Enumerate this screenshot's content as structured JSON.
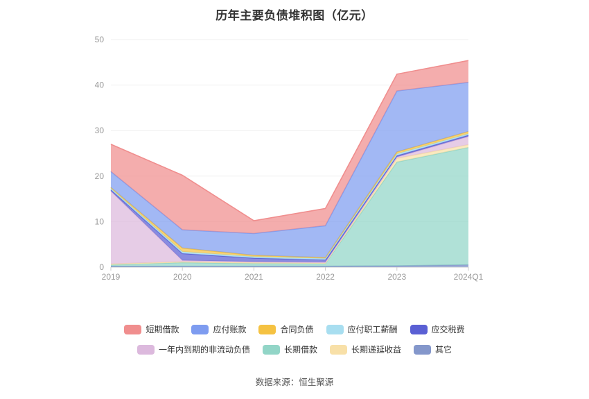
{
  "title": "历年主要负债堆积图（亿元）",
  "footer": "数据来源：恒生聚源",
  "chart_data": {
    "type": "area",
    "stacked": true,
    "title": "历年主要负债堆积图（亿元）",
    "categories": [
      "2019",
      "2020",
      "2021",
      "2022",
      "2023",
      "2024Q1"
    ],
    "ylim": [
      0,
      50
    ],
    "yticks": [
      0,
      10,
      20,
      30,
      40,
      50
    ],
    "grid": true,
    "legend_position": "bottom",
    "xlabel": "",
    "ylabel": "",
    "series": [
      {
        "name": "短期借款",
        "color": "#F08E8E",
        "values": [
          6.0,
          12.0,
          2.8,
          3.8,
          3.7,
          4.8
        ]
      },
      {
        "name": "应付账款",
        "color": "#7E9CF0",
        "values": [
          3.5,
          4.0,
          4.8,
          7.0,
          13.4,
          10.8
        ]
      },
      {
        "name": "合同负债",
        "color": "#F5C242",
        "values": [
          0.2,
          0.8,
          0.3,
          0.2,
          0.4,
          0.5
        ]
      },
      {
        "name": "应付职工薪酬",
        "color": "#A8DEF0",
        "values": [
          0.3,
          0.4,
          0.3,
          0.3,
          0.4,
          0.3
        ]
      },
      {
        "name": "应交税费",
        "color": "#5A60D4",
        "values": [
          0.3,
          1.5,
          0.8,
          0.5,
          0.3,
          0.3
        ]
      },
      {
        "name": "一年内到期的非流动负债",
        "color": "#DCB9DD",
        "values": [
          16.0,
          0.3,
          0.2,
          0.2,
          0.3,
          1.8
        ]
      },
      {
        "name": "长期借款",
        "color": "#92D5C7",
        "values": [
          0.3,
          0.8,
          0.6,
          0.6,
          22.8,
          25.8
        ]
      },
      {
        "name": "长期递延收益",
        "color": "#F8E0A8",
        "values": [
          0.2,
          0.2,
          0.2,
          0.1,
          0.8,
          0.6
        ]
      },
      {
        "name": "其它",
        "color": "#8497CB",
        "values": [
          0.2,
          0.2,
          0.2,
          0.2,
          0.3,
          0.5
        ]
      }
    ],
    "stack_order_bottom_to_top": [
      "其它",
      "长期借款",
      "长期递延收益",
      "一年内到期的非流动负债",
      "应交税费",
      "应付职工薪酬",
      "合同负债",
      "应付账款",
      "短期借款"
    ]
  },
  "legend": {
    "rows": [
      [
        "短期借款",
        "应付账款",
        "合同负债",
        "应付职工薪酬",
        "应交税费"
      ],
      [
        "一年内到期的非流动负债",
        "长期借款",
        "长期递延收益",
        "其它"
      ]
    ]
  }
}
